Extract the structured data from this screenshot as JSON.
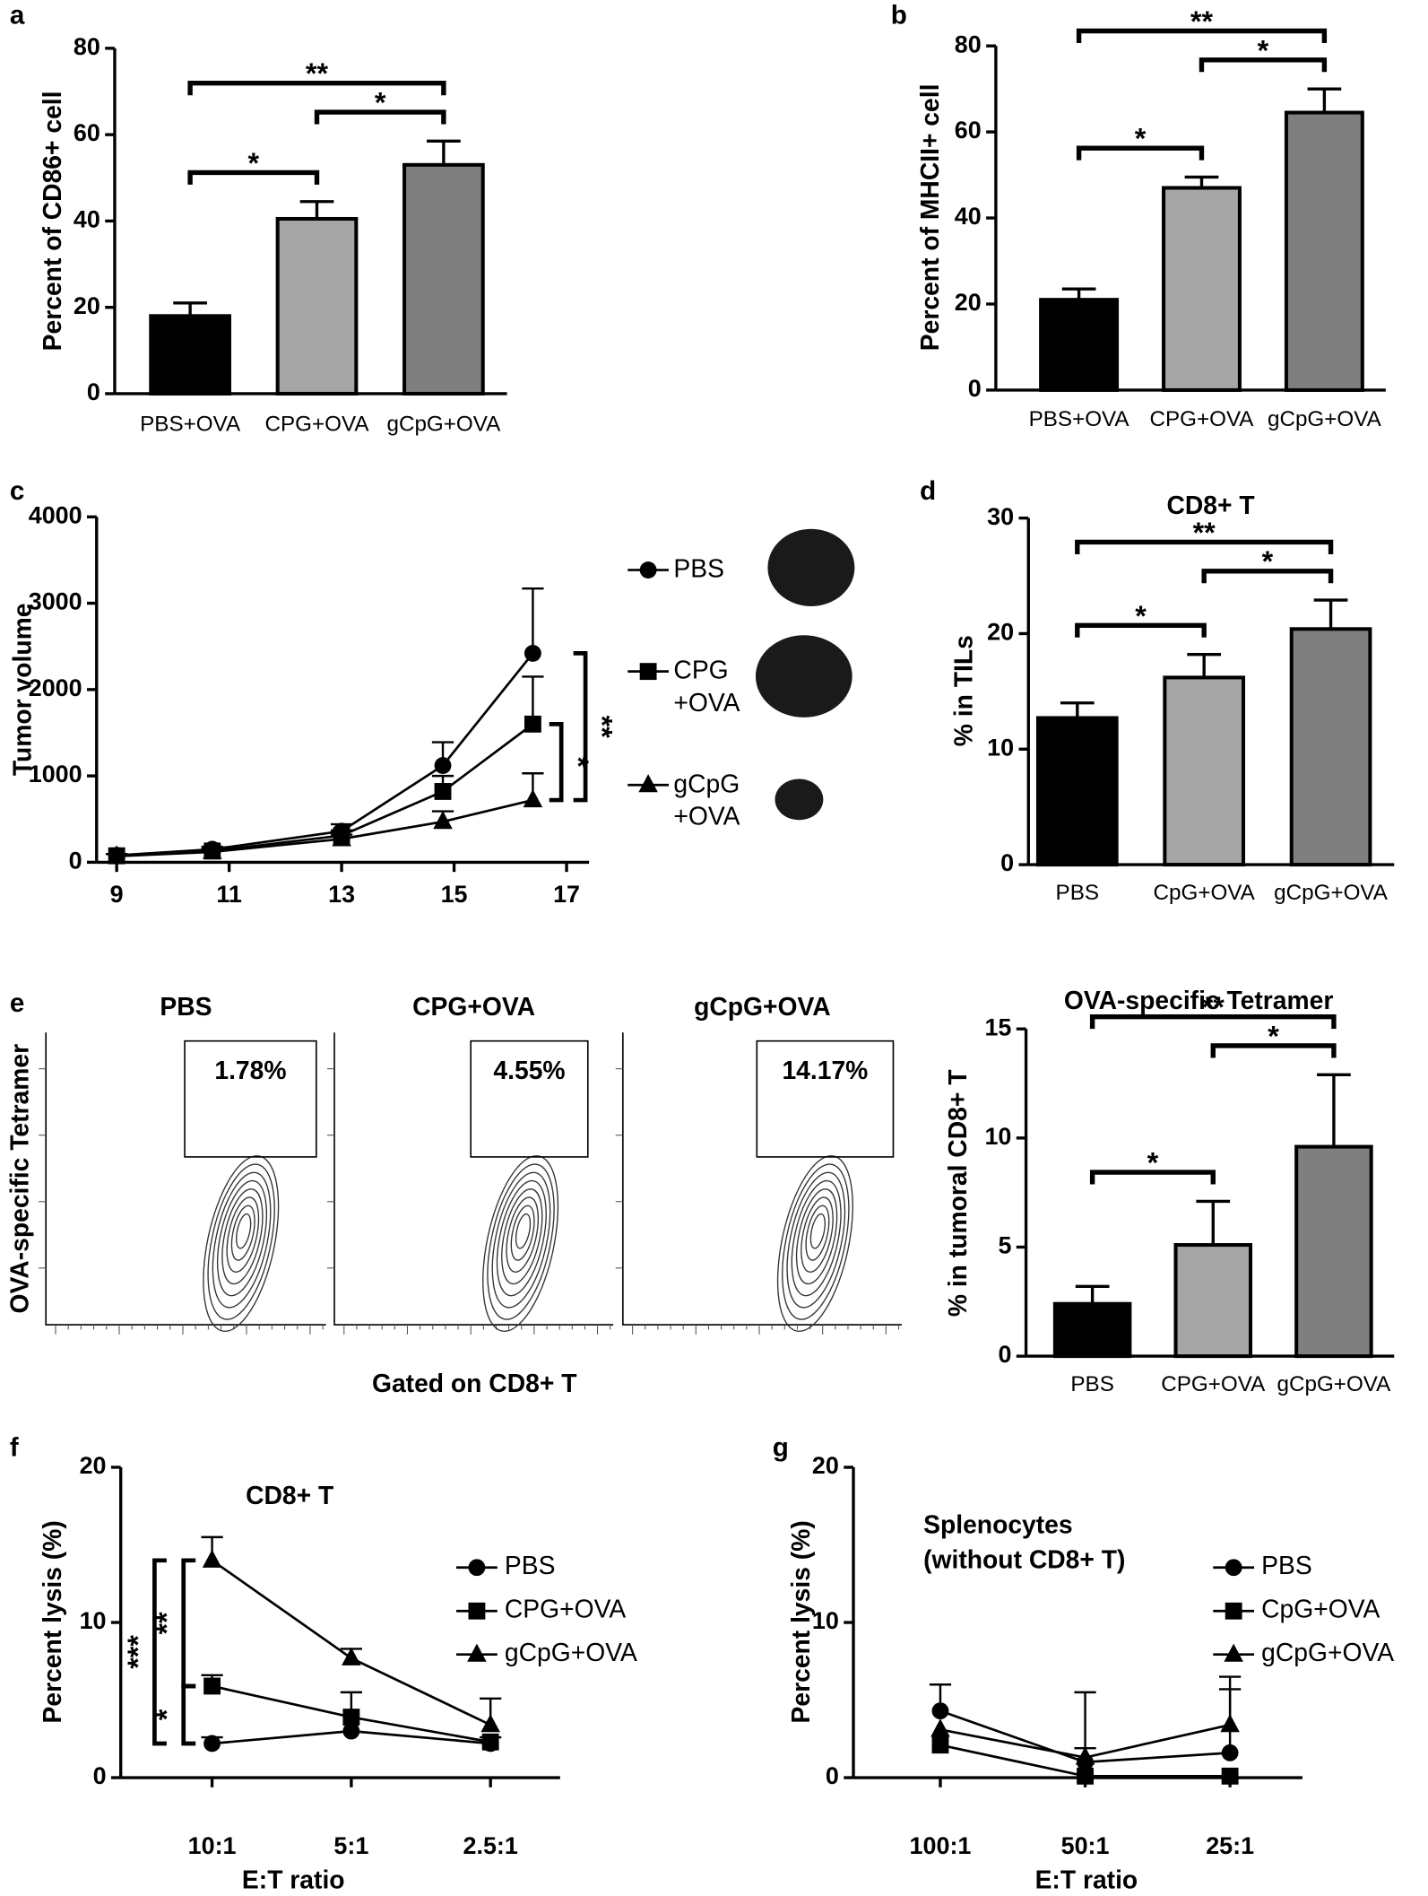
{
  "chart_data": [
    {
      "type": "bar",
      "panel": "a",
      "ylabel": "Percent of CD86+ cell",
      "categories": [
        "PBS+OVA",
        "CPG+OVA",
        "gCpG+OVA"
      ],
      "values": [
        18,
        40.5,
        53
      ],
      "errors": [
        3,
        4,
        5.5
      ],
      "colors": [
        "#000000",
        "#a6a6a6",
        "#7f7f7f"
      ],
      "ylim": [
        0,
        80
      ],
      "yticks": [
        0,
        20,
        40,
        60,
        80
      ],
      "annotations": [
        {
          "text": "*",
          "between": [
            "PBS+OVA",
            "CPG+OVA"
          ]
        },
        {
          "text": "*",
          "between": [
            "CPG+OVA",
            "gCpG+OVA"
          ]
        },
        {
          "text": "**",
          "between": [
            "PBS+OVA",
            "gCpG+OVA"
          ]
        }
      ]
    },
    {
      "type": "bar",
      "panel": "b",
      "ylabel": "Percent of MHCII+ cell",
      "categories": [
        "PBS+OVA",
        "CPG+OVA",
        "gCpG+OVA"
      ],
      "values": [
        21,
        47,
        64.5
      ],
      "errors": [
        2.5,
        2.5,
        5.5
      ],
      "colors": [
        "#000000",
        "#a6a6a6",
        "#7f7f7f"
      ],
      "ylim": [
        0,
        80
      ],
      "yticks": [
        0,
        20,
        40,
        60,
        80
      ],
      "annotations": [
        {
          "text": "*",
          "between": [
            "PBS+OVA",
            "CPG+OVA"
          ]
        },
        {
          "text": "*",
          "between": [
            "CPG+OVA",
            "gCpG+OVA"
          ]
        },
        {
          "text": "**",
          "between": [
            "PBS+OVA",
            "gCpG+OVA"
          ]
        }
      ]
    },
    {
      "type": "line",
      "panel": "c",
      "ylabel": "Tumor volume",
      "x": [
        9,
        10.7,
        13,
        14.8,
        16.4
      ],
      "xlim": [
        8.6,
        17.4
      ],
      "xticks": [
        9,
        11,
        13,
        15,
        17
      ],
      "ylim": [
        0,
        4000
      ],
      "yticks": [
        0,
        1000,
        2000,
        3000,
        4000
      ],
      "series": [
        {
          "name": "PBS",
          "marker": "circle",
          "color": "#000000",
          "values": [
            80,
            150,
            360,
            1120,
            2420
          ],
          "errors": [
            null,
            30,
            80,
            270,
            750
          ]
        },
        {
          "name": "CPG +OVA",
          "marker": "square",
          "color": "#000000",
          "values": [
            75,
            130,
            310,
            820,
            1600
          ],
          "errors": [
            20,
            30,
            60,
            180,
            550
          ]
        },
        {
          "name": "gCpG +OVA",
          "marker": "triangle",
          "color": "#000000",
          "values": [
            70,
            120,
            270,
            470,
            720
          ],
          "errors": [
            null,
            30,
            50,
            120,
            310
          ]
        }
      ],
      "annotations": [
        {
          "text": "*",
          "between": [
            "CPG +OVA",
            "gCpG +OVA"
          ]
        },
        {
          "text": "**",
          "between": [
            "PBS",
            "gCpG +OVA"
          ]
        }
      ]
    },
    {
      "type": "bar",
      "panel": "d",
      "title": "CD8+ T",
      "ylabel": "% in TILs",
      "categories": [
        "PBS",
        "CpG+OVA",
        "gCpG+OVA"
      ],
      "values": [
        12.7,
        16.2,
        20.4
      ],
      "errors": [
        1.3,
        2,
        2.5
      ],
      "colors": [
        "#000000",
        "#a6a6a6",
        "#7f7f7f"
      ],
      "ylim": [
        0,
        30
      ],
      "yticks": [
        0,
        10,
        20,
        30
      ],
      "annotations": [
        {
          "text": "*",
          "between": [
            "PBS",
            "CpG+OVA"
          ]
        },
        {
          "text": "*",
          "between": [
            "CpG+OVA",
            "gCpG+OVA"
          ]
        },
        {
          "text": "**",
          "between": [
            "PBS",
            "gCpG+OVA"
          ]
        }
      ]
    },
    {
      "type": "flow",
      "panel": "e",
      "ylabel": "OVA-specific Tetramer",
      "xlabel": "Gated on CD8+ T",
      "categories": [
        "PBS",
        "CPG+OVA",
        "gCpG+OVA"
      ],
      "values": [
        1.78,
        4.55,
        14.17
      ],
      "value_labels": [
        "1.78%",
        "4.55%",
        "14.17%"
      ]
    },
    {
      "type": "bar",
      "title": "OVA-specific Tetramer",
      "ylabel": "% in tumoral CD8+ T",
      "categories": [
        "PBS",
        "CPG+OVA",
        "gCpG+OVA"
      ],
      "values": [
        2.4,
        5.1,
        9.6
      ],
      "errors": [
        0.8,
        2,
        3.3
      ],
      "colors": [
        "#000000",
        "#a6a6a6",
        "#7f7f7f"
      ],
      "ylim": [
        0,
        15
      ],
      "yticks": [
        0,
        5,
        10,
        15
      ],
      "annotations": [
        {
          "text": "*",
          "between": [
            "PBS",
            "CPG+OVA"
          ]
        },
        {
          "text": "*",
          "between": [
            "CPG+OVA",
            "gCpG+OVA"
          ]
        },
        {
          "text": "**",
          "between": [
            "PBS",
            "gCpG+OVA"
          ]
        }
      ]
    },
    {
      "type": "line",
      "panel": "f",
      "title": "CD8+ T",
      "ylabel": "Percent lysis (%)",
      "xlabel": "E:T ratio",
      "categories": [
        "10:1",
        "5:1",
        "2.5:1"
      ],
      "ylim": [
        0,
        20
      ],
      "yticks": [
        0,
        10,
        20
      ],
      "series": [
        {
          "name": "PBS",
          "marker": "circle",
          "color": "#000000",
          "values": [
            2.2,
            3,
            2.2
          ],
          "errors": [
            0.4,
            null,
            null
          ]
        },
        {
          "name": "CPG+OVA",
          "marker": "square",
          "color": "#000000",
          "values": [
            5.9,
            3.9,
            2.3
          ],
          "errors": [
            0.7,
            1.6,
            0.3
          ]
        },
        {
          "name": "gCpG+OVA",
          "marker": "triangle",
          "color": "#000000",
          "values": [
            14,
            7.7,
            3.4
          ],
          "errors": [
            1.5,
            0.6,
            1.7
          ]
        }
      ],
      "annotations": [
        {
          "text": "**",
          "between": [
            "CPG+OVA",
            "gCpG+OVA"
          ]
        },
        {
          "text": "*",
          "between": [
            "PBS",
            "CPG+OVA"
          ]
        },
        {
          "text": "***",
          "between": [
            "PBS",
            "gCpG+OVA"
          ]
        }
      ]
    },
    {
      "type": "line",
      "panel": "g",
      "title": "Splenocytes",
      "subtitle": "(without CD8+ T)",
      "ylabel": "Percent lysis (%)",
      "xlabel": "E:T ratio",
      "categories": [
        "100:1",
        "50:1",
        "25:1"
      ],
      "ylim": [
        0,
        20
      ],
      "yticks": [
        0,
        10,
        20
      ],
      "series": [
        {
          "name": "PBS",
          "marker": "circle",
          "color": "#000000",
          "values": [
            4.3,
            1,
            1.6
          ],
          "errors": [
            1.7,
            0.9,
            4.1
          ]
        },
        {
          "name": "CpG+OVA",
          "marker": "square",
          "color": "#000000",
          "values": [
            2.1,
            0.1,
            0.1
          ],
          "errors": [
            null,
            null,
            null
          ]
        },
        {
          "name": "gCpG+OVA",
          "marker": "triangle",
          "color": "#000000",
          "values": [
            3.1,
            1.3,
            3.4
          ],
          "errors": [
            null,
            4.2,
            3.1
          ]
        }
      ],
      "annotations": []
    }
  ]
}
